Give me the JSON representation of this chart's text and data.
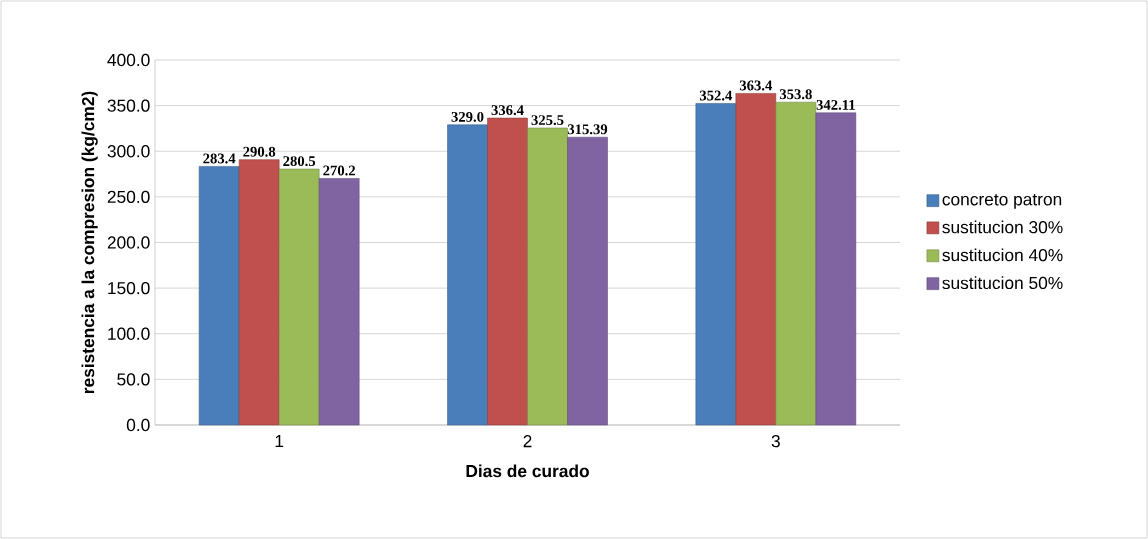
{
  "chart_data": {
    "type": "bar",
    "xlabel": "Dias de curado",
    "ylabel": "resistencia a la compresion (kg/cm2)",
    "categories": [
      "1",
      "2",
      "3"
    ],
    "series": [
      {
        "name": "concreto patron",
        "color": "#4a7ebb",
        "values": [
          283.4,
          329.0,
          352.4
        ],
        "value_labels": [
          "283.4",
          "329.0",
          "352.4"
        ]
      },
      {
        "name": "sustitucion 30%",
        "color": "#c0504d",
        "values": [
          290.8,
          336.4,
          363.4
        ],
        "value_labels": [
          "290.8",
          "336.4",
          "363.4"
        ]
      },
      {
        "name": "sustitucion 40%",
        "color": "#9bbb59",
        "values": [
          280.5,
          325.5,
          353.8
        ],
        "value_labels": [
          "280.5",
          "325.5",
          "353.8"
        ]
      },
      {
        "name": "sustitucion 50%",
        "color": "#8064a2",
        "values": [
          270.2,
          315.39,
          342.11
        ],
        "value_labels": [
          "270.2",
          "315.39",
          "342.11"
        ]
      }
    ],
    "ylim": [
      0,
      400
    ],
    "yticks": [
      {
        "value": 0,
        "label": "0.0"
      },
      {
        "value": 50,
        "label": "50.0"
      },
      {
        "value": 100,
        "label": "100.0"
      },
      {
        "value": 150,
        "label": "150.0"
      },
      {
        "value": 200,
        "label": "200.0"
      },
      {
        "value": 250,
        "label": "250.0"
      },
      {
        "value": 300,
        "label": "300.0"
      },
      {
        "value": 350,
        "label": "350.0"
      },
      {
        "value": 400,
        "label": "400.0"
      }
    ],
    "grid": "y",
    "legend": "right"
  }
}
